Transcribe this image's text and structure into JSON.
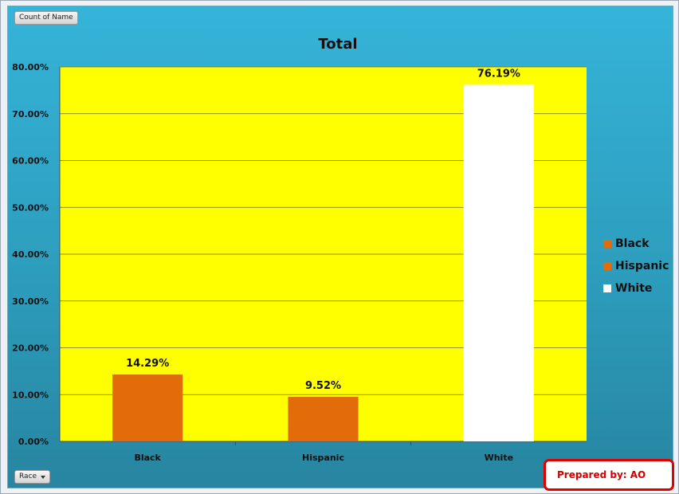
{
  "pivot_fields": {
    "value_field": "Count of Name",
    "axis_field": "Race"
  },
  "chart_data": {
    "type": "bar",
    "title": "Total",
    "categories": [
      "Black",
      "Hispanic",
      "White"
    ],
    "values": [
      14.29,
      9.52,
      76.19
    ],
    "data_labels": [
      "14.29%",
      "9.52%",
      "76.19%"
    ],
    "bar_colors": [
      "#e26b0a",
      "#e26b0a",
      "#ffffff"
    ],
    "ylim": [
      0,
      80
    ],
    "yticks": [
      0,
      10,
      20,
      30,
      40,
      50,
      60,
      70,
      80
    ],
    "ytick_labels": [
      "0.00%",
      "10.00%",
      "20.00%",
      "30.00%",
      "40.00%",
      "50.00%",
      "60.00%",
      "70.00%",
      "80.00%"
    ],
    "grid": true,
    "plot_background": "#ffff00",
    "legend_position": "right",
    "legend": [
      {
        "label": "Black",
        "color": "#e26b0a"
      },
      {
        "label": "Hispanic",
        "color": "#e26b0a"
      },
      {
        "label": "White",
        "color": "#ffffff"
      }
    ]
  },
  "footer_note": "Prepared by: AO"
}
